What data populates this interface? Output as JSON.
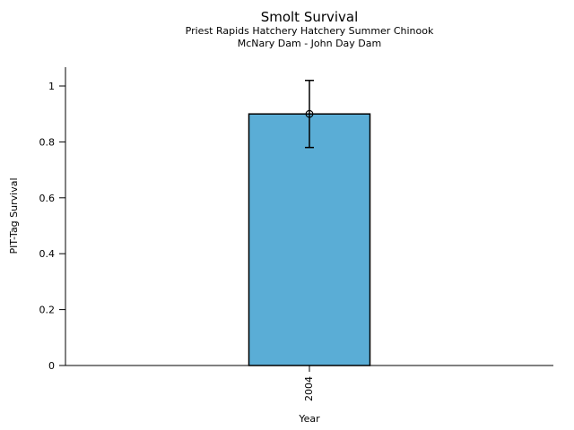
{
  "chart_data": {
    "type": "bar",
    "title": "Smolt Survival",
    "subtitle_lines": [
      "Priest Rapids Hatchery Hatchery Summer Chinook",
      "McNary Dam - John Day Dam"
    ],
    "xlabel": "Year",
    "ylabel": "PIT-Tag Survival",
    "categories": [
      "2004"
    ],
    "values": [
      0.9
    ],
    "error_low": [
      0.78
    ],
    "error_high": [
      1.02
    ],
    "yticks": [
      0,
      0.2,
      0.4,
      0.6,
      0.8,
      1
    ],
    "ytick_labels": [
      "0",
      "0.2",
      "0.4",
      "0.6",
      "0.8",
      "1"
    ],
    "ylim": [
      0,
      1.07
    ],
    "xtick_rotation": 90,
    "grid": false,
    "legend": "none",
    "marker": "open-circle",
    "colors": {
      "bar_fill": "#5AADD6",
      "bar_edge": "#000000",
      "error": "#000000",
      "text": "#000000",
      "background": "#ffffff"
    }
  }
}
